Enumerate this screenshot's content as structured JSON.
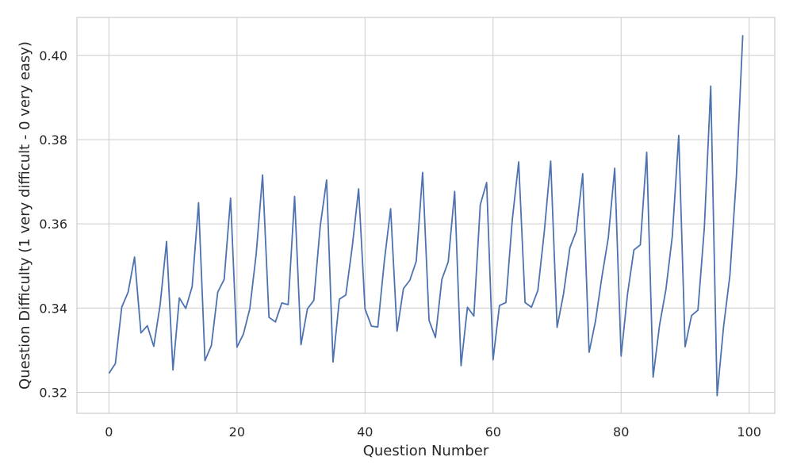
{
  "chart_data": {
    "type": "line",
    "title": "",
    "xlabel": "Question Number",
    "ylabel": "Question Difficulty (1 very difficult - 0 very easy)",
    "xlim": [
      -5,
      104
    ],
    "ylim": [
      0.315,
      0.409
    ],
    "xticks": [
      0,
      20,
      40,
      60,
      80,
      100
    ],
    "yticks": [
      0.32,
      0.34,
      0.36,
      0.38,
      0.4
    ],
    "xtick_labels": [
      "0",
      "20",
      "40",
      "60",
      "80",
      "100"
    ],
    "ytick_labels": [
      "0.32",
      "0.34",
      "0.36",
      "0.38",
      "0.40"
    ],
    "grid": true,
    "legend": "none",
    "series": [
      {
        "color": "#4c72b0",
        "x": [
          0,
          1,
          2,
          3,
          4,
          5,
          6,
          7,
          8,
          9,
          10,
          11,
          12,
          13,
          14,
          15,
          16,
          17,
          18,
          19,
          20,
          21,
          22,
          23,
          24,
          25,
          26,
          27,
          28,
          29,
          30,
          31,
          32,
          33,
          34,
          35,
          36,
          37,
          38,
          39,
          40,
          41,
          42,
          43,
          44,
          45,
          46,
          47,
          48,
          49,
          50,
          51,
          52,
          53,
          54,
          55,
          56,
          57,
          58,
          59,
          60,
          61,
          62,
          63,
          64,
          65,
          66,
          67,
          68,
          69,
          70,
          71,
          72,
          73,
          74,
          75,
          76,
          77,
          78,
          79,
          80,
          81,
          82,
          83,
          84,
          85,
          86,
          87,
          88,
          89,
          90,
          91,
          92,
          93,
          94,
          95,
          96,
          97,
          98,
          99
        ],
        "values": [
          0.3245,
          0.3268,
          0.3402,
          0.3438,
          0.3521,
          0.3341,
          0.3358,
          0.3309,
          0.3408,
          0.3558,
          0.3253,
          0.3424,
          0.3399,
          0.3451,
          0.365,
          0.3275,
          0.3311,
          0.3438,
          0.3468,
          0.3661,
          0.3307,
          0.3338,
          0.3398,
          0.3528,
          0.3716,
          0.3378,
          0.3367,
          0.3412,
          0.3408,
          0.3665,
          0.3313,
          0.3398,
          0.3418,
          0.3594,
          0.3704,
          0.3272,
          0.3421,
          0.3431,
          0.3545,
          0.3683,
          0.3398,
          0.3357,
          0.3355,
          0.3509,
          0.3636,
          0.3345,
          0.3446,
          0.3466,
          0.3511,
          0.3722,
          0.3371,
          0.333,
          0.3468,
          0.351,
          0.3677,
          0.3263,
          0.3402,
          0.3381,
          0.3645,
          0.3698,
          0.3277,
          0.3406,
          0.3413,
          0.3609,
          0.3747,
          0.3413,
          0.3402,
          0.3442,
          0.3581,
          0.3749,
          0.3354,
          0.3433,
          0.3543,
          0.3583,
          0.3719,
          0.3295,
          0.3369,
          0.3474,
          0.3567,
          0.3732,
          0.3286,
          0.3433,
          0.3538,
          0.355,
          0.377,
          0.3236,
          0.3359,
          0.3444,
          0.3571,
          0.381,
          0.3308,
          0.3382,
          0.3395,
          0.359,
          0.3927,
          0.3192,
          0.3355,
          0.3479,
          0.371,
          0.4048
        ]
      }
    ]
  }
}
